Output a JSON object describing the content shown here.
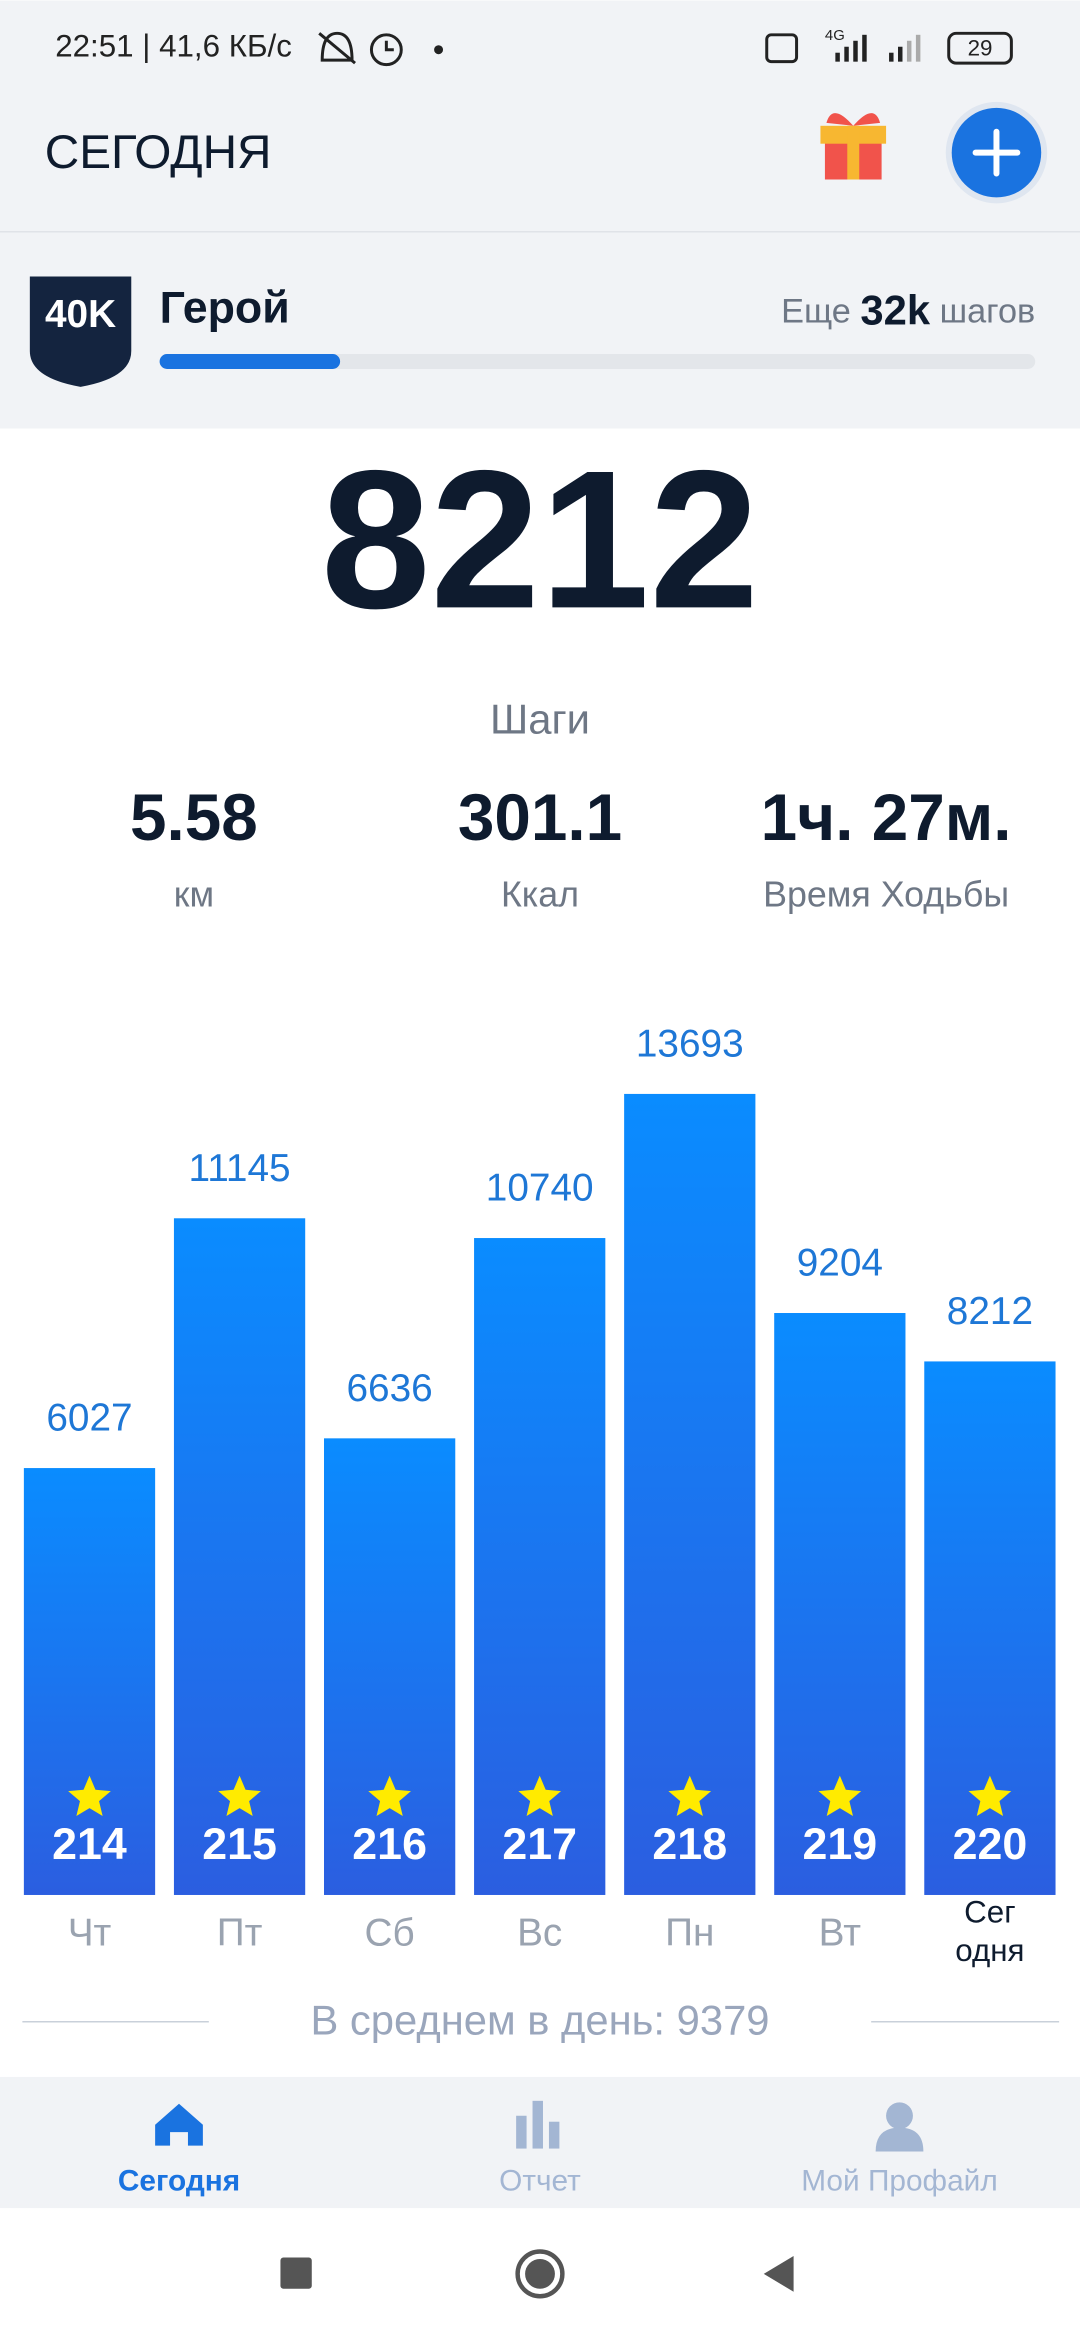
{
  "status_bar": {
    "time": "22:51 | 41,6 КБ/с",
    "network": "4G",
    "battery": "29"
  },
  "header": {
    "title": "СЕГОДНЯ"
  },
  "level": {
    "badge": "40K",
    "name": "Герой",
    "remaining_prefix": "Еще",
    "remaining_value": "32k",
    "remaining_suffix": "шагов"
  },
  "today": {
    "steps": "8212",
    "steps_label": "Шаги",
    "stats": [
      {
        "value": "5.58",
        "label": "км"
      },
      {
        "value": "301.1",
        "label": "Ккал"
      },
      {
        "value": "1ч. 27м.",
        "label": "Время Ходьбы"
      }
    ]
  },
  "chart_data": {
    "type": "bar",
    "categories": [
      "Чт",
      "Пт",
      "Сб",
      "Вс",
      "Пн",
      "Вт",
      "Сег\nодня"
    ],
    "values": [
      6027,
      11145,
      6636,
      10740,
      13693,
      9204,
      8212
    ],
    "day_numbers": [
      "214",
      "215",
      "216",
      "217",
      "218",
      "219",
      "220"
    ],
    "color": "#1a7cf0",
    "average": "В среднем в день: 9379"
  },
  "nav": {
    "items": [
      "Сегодня",
      "Отчет",
      "Мой Профайл"
    ]
  }
}
